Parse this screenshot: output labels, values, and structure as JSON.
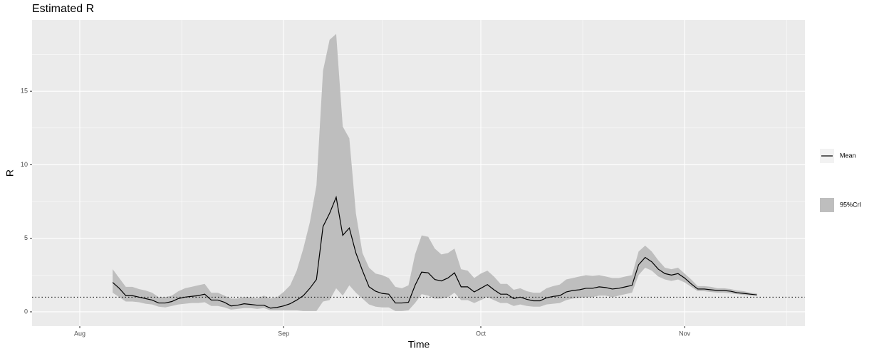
{
  "chart_data": {
    "type": "line",
    "title": "Estimated R",
    "x_label": "Time",
    "y_label": "R",
    "x": [
      5,
      6,
      7,
      8,
      9,
      10,
      11,
      12,
      13,
      14,
      15,
      16,
      17,
      18,
      19,
      20,
      21,
      22,
      23,
      24,
      25,
      26,
      27,
      28,
      29,
      30,
      31,
      32,
      33,
      34,
      35,
      36,
      37,
      38,
      39,
      40,
      41,
      42,
      43,
      44,
      45,
      46,
      47,
      48,
      49,
      50,
      51,
      52,
      53,
      54,
      55,
      56,
      57,
      58,
      59,
      60,
      61,
      62,
      63,
      64,
      65,
      66,
      67,
      68,
      69,
      70,
      71,
      72,
      73,
      74,
      75,
      76,
      77,
      78,
      79,
      80,
      81,
      82,
      83,
      84,
      85,
      86,
      87,
      88,
      89,
      90,
      91,
      92,
      93,
      94,
      95,
      96,
      97,
      98,
      99,
      100,
      101,
      102,
      103
    ],
    "series": [
      {
        "name": "Mean",
        "color": "#000000",
        "values": [
          2.0,
          1.6,
          1.1,
          1.1,
          1.0,
          0.9,
          0.8,
          0.6,
          0.6,
          0.7,
          0.9,
          1.0,
          1.05,
          1.1,
          1.2,
          0.8,
          0.8,
          0.65,
          0.4,
          0.45,
          0.55,
          0.5,
          0.45,
          0.45,
          0.25,
          0.3,
          0.4,
          0.55,
          0.8,
          1.1,
          1.6,
          2.2,
          5.8,
          6.7,
          7.8,
          5.2,
          5.7,
          4.0,
          2.8,
          1.7,
          1.4,
          1.25,
          1.2,
          0.6,
          0.6,
          0.65,
          1.8,
          2.7,
          2.65,
          2.2,
          2.1,
          2.3,
          2.65,
          1.7,
          1.7,
          1.35,
          1.6,
          1.85,
          1.5,
          1.2,
          1.2,
          0.9,
          1.0,
          0.85,
          0.75,
          0.75,
          0.95,
          1.05,
          1.1,
          1.35,
          1.45,
          1.5,
          1.6,
          1.6,
          1.7,
          1.65,
          1.55,
          1.6,
          1.7,
          1.8,
          3.2,
          3.7,
          3.4,
          2.9,
          2.6,
          2.5,
          2.6,
          2.3,
          1.9,
          1.55,
          1.55,
          1.5,
          1.45,
          1.45,
          1.4,
          1.3,
          1.25,
          1.2,
          1.15
        ]
      }
    ],
    "band": {
      "name": "95%CrI",
      "color": "#bebebe",
      "lower": [
        1.3,
        1.0,
        0.7,
        0.7,
        0.65,
        0.55,
        0.5,
        0.35,
        0.3,
        0.4,
        0.5,
        0.55,
        0.6,
        0.6,
        0.65,
        0.4,
        0.4,
        0.3,
        0.15,
        0.2,
        0.25,
        0.25,
        0.2,
        0.25,
        0.1,
        0.1,
        0.1,
        0.1,
        0.1,
        0.05,
        0.05,
        0.05,
        0.7,
        0.8,
        1.6,
        1.1,
        1.8,
        1.3,
        0.9,
        0.5,
        0.35,
        0.3,
        0.3,
        0.05,
        0.05,
        0.1,
        0.6,
        1.2,
        1.1,
        0.9,
        0.9,
        1.0,
        1.3,
        0.8,
        0.8,
        0.6,
        0.8,
        1.0,
        0.8,
        0.6,
        0.6,
        0.4,
        0.5,
        0.4,
        0.35,
        0.35,
        0.5,
        0.55,
        0.6,
        0.8,
        0.9,
        0.95,
        1.0,
        1.0,
        1.1,
        1.1,
        1.0,
        1.1,
        1.2,
        1.3,
        2.5,
        3.0,
        2.8,
        2.4,
        2.2,
        2.1,
        2.2,
        2.0,
        1.7,
        1.4,
        1.4,
        1.35,
        1.3,
        1.3,
        1.25,
        1.2,
        1.15,
        1.1,
        1.1
      ],
      "upper": [
        2.9,
        2.3,
        1.7,
        1.7,
        1.55,
        1.45,
        1.3,
        1.0,
        1.0,
        1.1,
        1.4,
        1.6,
        1.7,
        1.8,
        1.9,
        1.3,
        1.3,
        1.1,
        0.9,
        0.9,
        1.0,
        1.0,
        0.9,
        1.1,
        0.9,
        1.0,
        1.35,
        1.8,
        2.8,
        4.3,
        6.1,
        8.6,
        16.4,
        18.5,
        18.9,
        12.6,
        11.8,
        6.7,
        4.0,
        3.0,
        2.6,
        2.5,
        2.3,
        1.7,
        1.6,
        1.8,
        3.9,
        5.2,
        5.1,
        4.3,
        3.9,
        4.0,
        4.3,
        2.9,
        2.8,
        2.3,
        2.6,
        2.8,
        2.4,
        1.9,
        1.9,
        1.5,
        1.6,
        1.4,
        1.3,
        1.3,
        1.6,
        1.75,
        1.85,
        2.2,
        2.3,
        2.4,
        2.5,
        2.45,
        2.5,
        2.4,
        2.3,
        2.3,
        2.4,
        2.5,
        4.1,
        4.5,
        4.1,
        3.5,
        3.0,
        2.9,
        3.0,
        2.6,
        2.2,
        1.75,
        1.75,
        1.7,
        1.6,
        1.6,
        1.55,
        1.45,
        1.4,
        1.3,
        1.25
      ]
    },
    "hline": 1,
    "xlim": [
      -7.26,
      110.3
    ],
    "xticks": [
      {
        "value": 0,
        "label": "Aug"
      },
      {
        "value": 31,
        "label": "Sep"
      },
      {
        "value": 61,
        "label": "Oct"
      },
      {
        "value": 92,
        "label": "Nov"
      }
    ],
    "ylim": [
      -0.97,
      19.85
    ],
    "yticks": [
      0,
      5,
      10,
      15
    ],
    "grid": true,
    "legend": "right"
  }
}
